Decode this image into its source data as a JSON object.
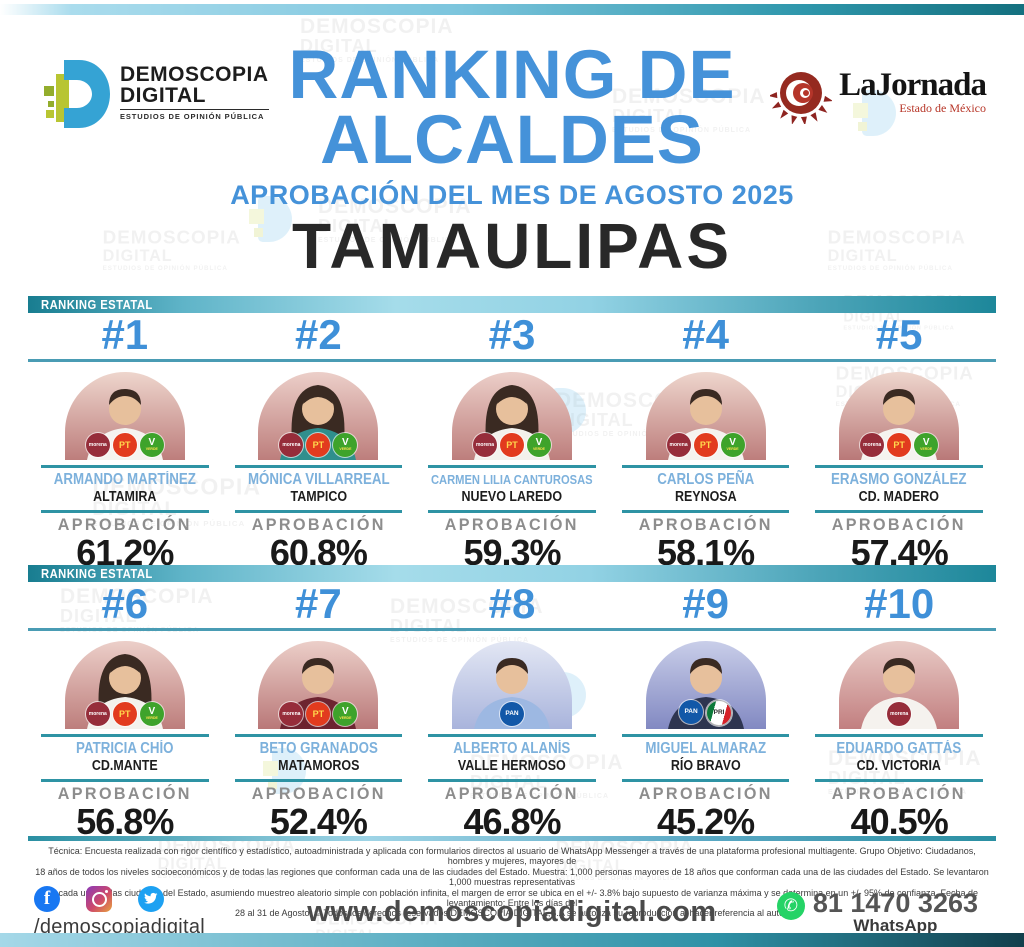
{
  "header": {
    "brand": {
      "line1": "DEMOSCOPIA",
      "line2": "DIGITAL",
      "tagline": "ESTUDIOS DE OPINIÓN PÚBLICA"
    },
    "title_line1": "RANKING DE",
    "title_line2": "ALCALDES",
    "subtitle": "APROBACIÓN DEL MES DE AGOSTO 2025",
    "state": "TAMAULIPAS",
    "partner": {
      "name": "LaJornada",
      "region": "Estado de México"
    }
  },
  "colors": {
    "title_blue": "#4592d9",
    "rank_blue": "#3f90d8",
    "name_blue": "#7db1dc",
    "divider_teal": "#2e93a4",
    "band_dark": "#1d879a",
    "band_light": "#a5dcea",
    "whatsapp_green": "#25d366"
  },
  "card_labels": {
    "approval": "APROBACIÓN"
  },
  "parties": {
    "morena": {
      "label": "morena",
      "bg": "#962d3a",
      "fg": "#ffffff"
    },
    "pt": {
      "label": "PT",
      "bg": "#e23b1e",
      "fg": "#ffd84d"
    },
    "verde": {
      "label": "V",
      "sub": "VERDE",
      "bg": "#3ea32b",
      "fg": "#ffffff",
      "sub_fg": "#ffe14d"
    },
    "pan": {
      "label": "PAN",
      "bg": "#1258a8",
      "fg": "#ffffff"
    },
    "pri": {
      "label": "PRI",
      "bg": "#ffffff",
      "fg": "#2b2b2b",
      "tricolor": true
    }
  },
  "sections": [
    {
      "label": "RANKING ESTATAL",
      "items": [
        {
          "rank": "#1",
          "name": "ARMANDO MARTÍNEZ",
          "city": "ALTAMIRA",
          "approval": "61.2%",
          "parties": [
            "morena",
            "pt",
            "verde"
          ],
          "photo": {
            "bg_top": "#eed6cd",
            "bg_bottom": "#bd7e7c",
            "shirt": "#f5f3ef",
            "hair": "short"
          }
        },
        {
          "rank": "#2",
          "name": "MÓNICA VILLARREAL",
          "city": "TAMPICO",
          "approval": "60.8%",
          "parties": [
            "morena",
            "pt",
            "verde"
          ],
          "photo": {
            "bg_top": "#eccfc9",
            "bg_bottom": "#bd7e7c",
            "shirt": "#2f8f8d",
            "hair": "long"
          }
        },
        {
          "rank": "#3",
          "name": "CARMEN LILIA CANTUROSAS",
          "city": "NUEVO LAREDO",
          "approval": "59.3%",
          "parties": [
            "morena",
            "pt",
            "verde"
          ],
          "photo": {
            "bg_top": "#eccfc9",
            "bg_bottom": "#bd7e7c",
            "shirt": "#f3f1ec",
            "hair": "long"
          }
        },
        {
          "rank": "#4",
          "name": "CARLOS PEÑA",
          "city": "REYNOSA",
          "approval": "58.1%",
          "parties": [
            "morena",
            "pt",
            "verde"
          ],
          "photo": {
            "bg_top": "#eed6cd",
            "bg_bottom": "#bd7e7c",
            "shirt": "#f5f3ef",
            "hair": "short"
          }
        },
        {
          "rank": "#5",
          "name": "ERASMO GONZÁLEZ",
          "city": "CD. MADERO",
          "approval": "57.4%",
          "parties": [
            "morena",
            "pt",
            "verde"
          ],
          "photo": {
            "bg_top": "#eed6cd",
            "bg_bottom": "#b97878",
            "shirt": "#f5f3ef",
            "hair": "short"
          }
        }
      ]
    },
    {
      "label": "RANKING ESTATAL",
      "items": [
        {
          "rank": "#6",
          "name": "PATRICIA CHÍO",
          "city": "CD.MANTE",
          "approval": "56.8%",
          "parties": [
            "morena",
            "pt",
            "verde"
          ],
          "photo": {
            "bg_top": "#eccfc9",
            "bg_bottom": "#bd7e7c",
            "shirt": "#f3f1ec",
            "hair": "long"
          }
        },
        {
          "rank": "#7",
          "name": "BETO GRANADOS",
          "city": "MATAMOROS",
          "approval": "52.4%",
          "parties": [
            "morena",
            "pt",
            "verde"
          ],
          "photo": {
            "bg_top": "#eccfc9",
            "bg_bottom": "#b97878",
            "shirt": "#6d2430",
            "hair": "short"
          }
        },
        {
          "rank": "#8",
          "name": "ALBERTO ALANÍS",
          "city": "VALLE HERMOSO",
          "approval": "46.8%",
          "parties": [
            "pan"
          ],
          "photo": {
            "bg_top": "#e3e7f4",
            "bg_bottom": "#a9b4dc",
            "shirt": "#9db8e2",
            "hair": "short"
          }
        },
        {
          "rank": "#9",
          "name": "MIGUEL ALMARAZ",
          "city": "RÍO BRAVO",
          "approval": "45.2%",
          "parties": [
            "pan",
            "pri"
          ],
          "photo": {
            "bg_top": "#c9cee9",
            "bg_bottom": "#8289c2",
            "shirt": "#2e3550",
            "hair": "short"
          }
        },
        {
          "rank": "#10",
          "name": "EDUARDO GATTÁS",
          "city": "CD. VICTORIA",
          "approval": "40.5%",
          "parties": [
            "morena"
          ],
          "photo": {
            "bg_top": "#e9cbc6",
            "bg_bottom": "#c27f80",
            "shirt": "#f5f2ee",
            "hair": "short"
          }
        }
      ]
    }
  ],
  "fineprint": {
    "lines": [
      "Técnica: Encuesta realizada con rigor científico y estadístico, autoadministrada y aplicada con formularios directos al usuario de WhatsApp Messenger a través de una plataforma profesional multiagente. Grupo Objetivo: Ciudadanos, hombres y mujeres, mayores de",
      "18 años de todos los niveles socioeconómicos y de todas las regiones que conforman cada una de las ciudades del Estado. Muestra: 1,000 personas mayores de 18 años que conforman cada una de las ciudades del Estado. Se levantaron 1,000 muestras representativas",
      "en cada una de las ciudades del Estado, asumiendo muestreo aleatorio simple con población infinita, el margen de error se ubica en el +/- 3.8% bajo supuesto de varianza máxima y se determina en un +/- 95% de confianza. Fecha de levantamiento: Entre los días del",
      "28 al 31 de Agosto. © Todos los derechos reservados DEMOSCOPIA DIGITAL,S.A se autoriza su reproducción al hacer referencia al autor."
    ]
  },
  "footer": {
    "social_handle": "/demoscopiadigital",
    "facebook_glyph": "f",
    "website": "www.demoscopiadigital.com",
    "whatsapp_glyph": "✆",
    "whatsapp_number": "81 1470 3263",
    "whatsapp_label": "WhatsApp"
  },
  "watermark": {
    "line1": "DEMOSCOPIA",
    "line2": "DIGITAL",
    "line3": "ESTUDIOS DE OPINIÓN PÚBLICA"
  }
}
